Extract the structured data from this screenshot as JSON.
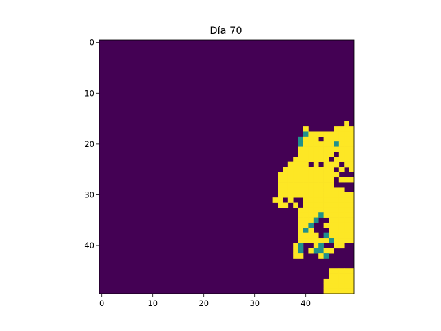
{
  "chart_data": {
    "type": "heatmap",
    "title": "Día 70",
    "grid_rows": 50,
    "grid_cols": 50,
    "xlim": [
      -0.5,
      49.5
    ],
    "ylim": [
      49.5,
      -0.5
    ],
    "xticks": [
      0,
      10,
      20,
      30,
      40
    ],
    "yticks": [
      0,
      10,
      20,
      30,
      40
    ],
    "grid": false,
    "legend": "none",
    "colormap": "viridis",
    "colors": {
      "0": "#440154",
      "1": "#21918c",
      "2": "#fde725"
    },
    "background_value": 0,
    "cells": {
      "value_2": {
        "16": [
          [
            48,
            48
          ]
        ],
        "17": [
          [
            40,
            41
          ],
          [
            43,
            43
          ],
          [
            46,
            49
          ]
        ],
        "18": [
          [
            40,
            49
          ]
        ],
        "19": [
          [
            40,
            42
          ],
          [
            44,
            49
          ]
        ],
        "20": [
          [
            40,
            49
          ]
        ],
        "21": [
          [
            39,
            49
          ]
        ],
        "22": [
          [
            39,
            49
          ]
        ],
        "23": [
          [
            38,
            44
          ],
          [
            46,
            49
          ]
        ],
        "24": [
          [
            37,
            49
          ]
        ],
        "25": [
          [
            36,
            49
          ]
        ],
        "26": [
          [
            35,
            49
          ]
        ],
        "27": [
          [
            35,
            49
          ]
        ],
        "28": [
          [
            35,
            49
          ]
        ],
        "29": [
          [
            35,
            49
          ]
        ],
        "30": [
          [
            35,
            49
          ]
        ],
        "31": [
          [
            34,
            49
          ]
        ],
        "32": [
          [
            35,
            49
          ]
        ],
        "33": [
          [
            39,
            49
          ]
        ],
        "34": [
          [
            39,
            49
          ]
        ],
        "35": [
          [
            39,
            49
          ]
        ],
        "36": [
          [
            39,
            49
          ]
        ],
        "37": [
          [
            39,
            49
          ]
        ],
        "38": [
          [
            39,
            49
          ]
        ],
        "39": [
          [
            39,
            49
          ]
        ],
        "40": [
          [
            38,
            47
          ]
        ],
        "41": [
          [
            38,
            41
          ],
          [
            44,
            45
          ]
        ],
        "42": [
          [
            38,
            39
          ],
          [
            43,
            44
          ]
        ],
        "45": [
          [
            45,
            49
          ]
        ],
        "46": [
          [
            45,
            49
          ]
        ],
        "47": [
          [
            44,
            49
          ]
        ],
        "48": [
          [
            44,
            49
          ]
        ],
        "49": [
          [
            44,
            49
          ]
        ]
      },
      "value_0_holes": {
        "17": [
          [
            41,
            41
          ],
          [
            43,
            43
          ]
        ],
        "19": [
          [
            43,
            43
          ]
        ],
        "22": [
          [
            46,
            46
          ]
        ],
        "23": [
          [
            45,
            45
          ]
        ],
        "24": [
          [
            41,
            41
          ],
          [
            43,
            43
          ],
          [
            47,
            47
          ]
        ],
        "25": [
          [
            46,
            46
          ],
          [
            48,
            48
          ]
        ],
        "26": [
          [
            47,
            49
          ]
        ],
        "27": [
          [
            46,
            46
          ]
        ],
        "28": [
          [
            46,
            49
          ]
        ],
        "29": [
          [
            48,
            49
          ]
        ],
        "31": [
          [
            36,
            36
          ],
          [
            38,
            39
          ]
        ],
        "32": [
          [
            37,
            37
          ],
          [
            39,
            39
          ]
        ],
        "35": [
          [
            43,
            44
          ]
        ],
        "36": [
          [
            42,
            43
          ]
        ],
        "37": [
          [
            42,
            44
          ]
        ],
        "38": [
          [
            43,
            43
          ]
        ],
        "39": [
          [
            45,
            45
          ]
        ],
        "40": [
          [
            40,
            41
          ],
          [
            44,
            45
          ]
        ],
        "41": [
          [
            40,
            40
          ]
        ],
        "42": [
          [
            40,
            40
          ],
          [
            42,
            42
          ]
        ]
      },
      "value_1": [
        [
          18,
          40
        ],
        [
          19,
          39
        ],
        [
          20,
          39
        ],
        [
          20,
          46
        ],
        [
          34,
          43
        ],
        [
          35,
          42
        ],
        [
          36,
          41
        ],
        [
          37,
          40
        ],
        [
          38,
          44
        ],
        [
          39,
          45
        ],
        [
          40,
          39
        ],
        [
          40,
          43
        ],
        [
          41,
          39
        ],
        [
          41,
          42
        ],
        [
          41,
          43
        ],
        [
          42,
          44
        ]
      ]
    }
  }
}
